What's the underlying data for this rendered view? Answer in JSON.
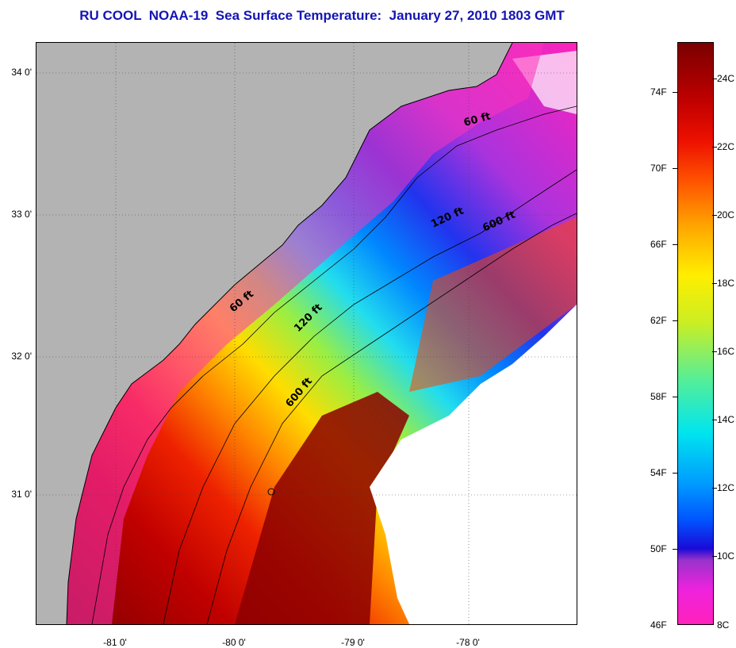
{
  "title": "RU COOL  NOAA-19  Sea Surface Temperature:  January 27, 2010 1803 GMT",
  "map": {
    "lat_labels": [
      {
        "text": "34 0'",
        "lat": 34
      },
      {
        "text": "33 0'",
        "lat": 33
      },
      {
        "text": "32 0'",
        "lat": 32
      },
      {
        "text": "31 0'",
        "lat": 31
      }
    ],
    "lon_labels": [
      {
        "text": "-81 0'",
        "lon": -81
      },
      {
        "text": "-80 0'",
        "lon": -80
      },
      {
        "text": "-79 0'",
        "lon": -79
      },
      {
        "text": "-78 0'",
        "lon": -78
      }
    ],
    "contour_labels": [
      {
        "text": "60 ft"
      },
      {
        "text": "120 ft"
      },
      {
        "text": "600 ft"
      },
      {
        "text": "60 ft"
      },
      {
        "text": "120 ft"
      },
      {
        "text": "600 ft"
      }
    ],
    "colors": {
      "land": "#b3b3b3",
      "cloud": "#ffffff",
      "coast": "#000000"
    }
  },
  "colorbar": {
    "fahrenheit_labels": [
      "74F",
      "70F",
      "66F",
      "62F",
      "58F",
      "54F",
      "50F",
      "46F"
    ],
    "celsius_labels": [
      "24C",
      "22C",
      "20C",
      "18C",
      "16C",
      "14C",
      "12C",
      "10C",
      "8C"
    ]
  }
}
